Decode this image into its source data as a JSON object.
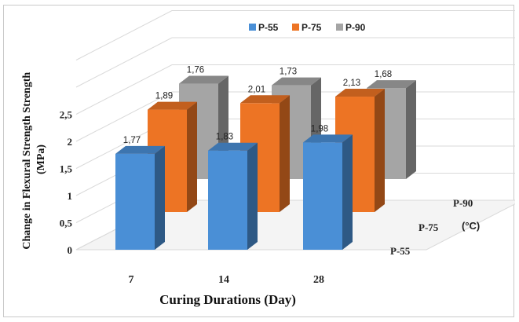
{
  "chart_data": {
    "type": "bar",
    "categories": [
      "7",
      "14",
      "28"
    ],
    "series": [
      {
        "name": "P-55",
        "values": [
          1.77,
          1.83,
          1.98
        ],
        "color": "#4a8fd6"
      },
      {
        "name": "P-75",
        "values": [
          1.89,
          2.01,
          2.13
        ],
        "color": "#ed7424"
      },
      {
        "name": "P-90",
        "values": [
          1.76,
          1.73,
          1.68
        ],
        "color": "#a5a5a5"
      }
    ],
    "value_labels": [
      [
        "1,77",
        "1,83",
        "1,98"
      ],
      [
        "1,89",
        "2,01",
        "2,13"
      ],
      [
        "1,76",
        "1,73",
        "1,68"
      ]
    ],
    "y_ticks": [
      "0",
      "0,5",
      "1",
      "1,5",
      "2",
      "2,5"
    ],
    "ylim": [
      0,
      3.5
    ],
    "xlabel": "Curing Durations (Day)",
    "ylabel": "Change in Flexural Strength Strength (MPa)",
    "depth_unit": "(°C)",
    "legend_position": "top-center",
    "grid": true,
    "style": "3d-clustered-column"
  }
}
